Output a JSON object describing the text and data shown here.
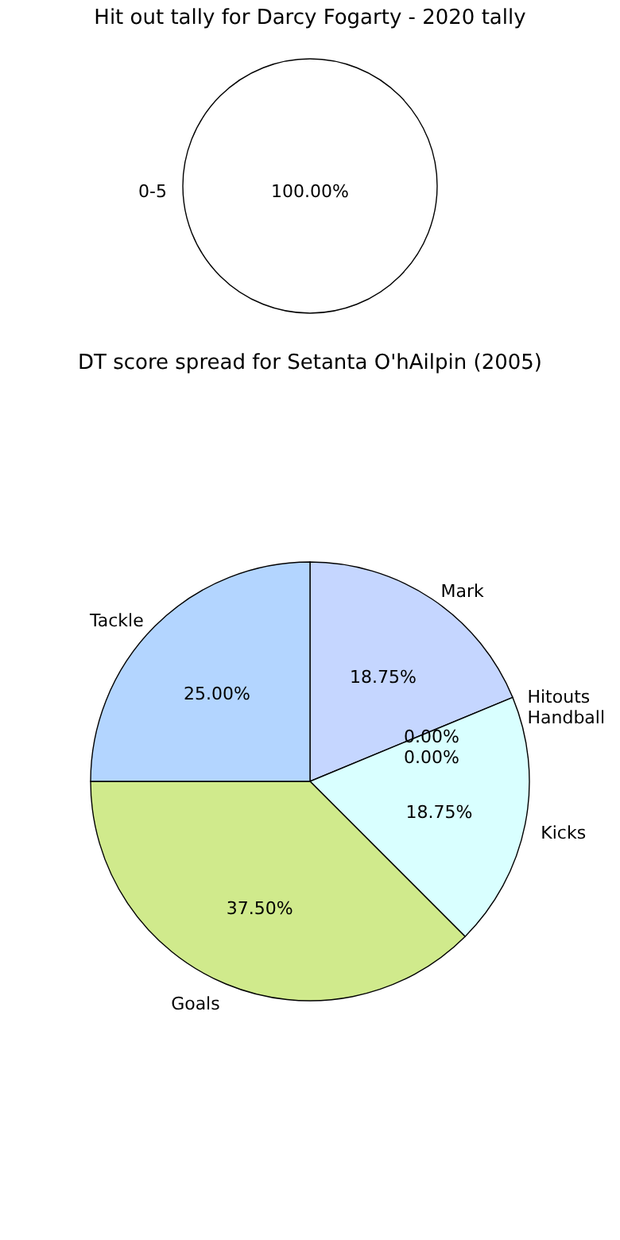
{
  "chart_data": [
    {
      "type": "pie",
      "title": "Hit out tally for Darcy Fogarty - 2020 tally",
      "categories": [
        "0-5"
      ],
      "values": [
        100
      ],
      "colors": [
        "#ffffff"
      ],
      "value_labels": [
        "100.00%"
      ]
    },
    {
      "type": "pie",
      "title": "DT score spread for Setanta O'hAilpin (2005)",
      "categories": [
        "Mark",
        "Hitouts",
        "Handball",
        "Kicks",
        "Goals",
        "Tackle"
      ],
      "values": [
        18.75,
        0,
        0,
        18.75,
        37.5,
        25
      ],
      "colors": [
        "#c5d6ff",
        "#ffd0d0",
        "#ffe8b0",
        "#d9ffff",
        "#d0ea8c",
        "#b3d5ff"
      ],
      "value_labels": [
        "18.75%",
        "0.00%",
        "0.00%",
        "18.75%",
        "37.50%",
        "25.00%"
      ]
    }
  ]
}
